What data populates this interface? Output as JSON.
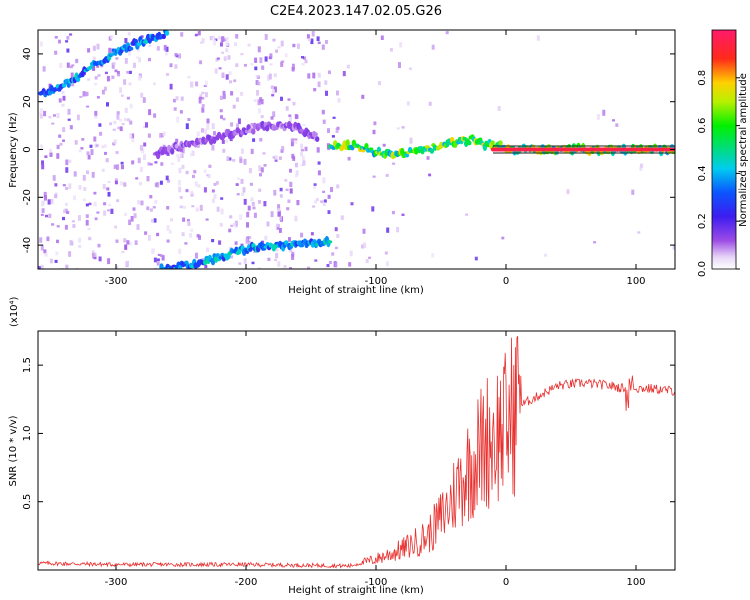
{
  "title": "C2E4.2023.147.02.05.G26",
  "chart_data": [
    {
      "type": "heatmap",
      "title": "C2E4.2023.147.02.05.G26",
      "xlabel": "Height of straight line (km)",
      "ylabel": "Frequency (Hz)",
      "xlim": [
        -360,
        130
      ],
      "ylim": [
        -50,
        50
      ],
      "x_ticks": [
        -300,
        -200,
        -100,
        0,
        100
      ],
      "x_tick_labels": [
        "-300",
        "-200",
        "-100",
        "0",
        "100"
      ],
      "y_ticks": [
        -40,
        -20,
        0,
        20,
        40
      ],
      "y_tick_labels": [
        "-40",
        "-20",
        "0",
        "20",
        "40"
      ],
      "colorbar": {
        "label": "Normalized spectral amplitude",
        "range": [
          0,
          1
        ],
        "ticks": [
          0.0,
          0.2,
          0.4,
          0.6,
          0.8
        ],
        "tick_labels": [
          "0.0",
          "0.2",
          "0.4",
          "0.6",
          "0.8"
        ],
        "colormap": "rainbow (white-purple-blue-cyan-green-yellow-red-magenta)"
      },
      "features": [
        {
          "x": [
            -358,
            -335,
            -315,
            -300,
            -280,
            -260
          ],
          "y": [
            23,
            28,
            36,
            41,
            45,
            49
          ],
          "amplitude": 0.35
        },
        {
          "x": [
            -265,
            -240,
            -215,
            -195,
            -175,
            -150,
            -135
          ],
          "y": [
            -50,
            -48,
            -44,
            -41,
            -40,
            -39,
            -39
          ],
          "amplitude": 0.38
        },
        {
          "x": [
            -270,
            -240,
            -200,
            -180,
            -160,
            -145
          ],
          "y": [
            -2,
            3,
            8,
            10,
            9,
            5
          ],
          "amplitude": 0.12
        },
        {
          "x": [
            -135,
            -120,
            -100,
            -80,
            -60,
            -40,
            -25,
            -15,
            -5,
            0,
            130
          ],
          "y": [
            1,
            2,
            -1,
            -2,
            0,
            3,
            4,
            2,
            2,
            0,
            0
          ],
          "amplitude": 0.6
        },
        {
          "x": [
            -10,
            130
          ],
          "y": [
            0,
            0
          ],
          "amplitude": 0.95
        }
      ]
    },
    {
      "type": "line",
      "xlabel": "Height of straight line (km)",
      "ylabel": "SNR (10 * v/v)",
      "y_multiplier": "(x10⁴)",
      "xlim": [
        -360,
        130
      ],
      "ylim": [
        0,
        1.75
      ],
      "x_ticks": [
        -300,
        -200,
        -100,
        0,
        100
      ],
      "x_tick_labels": [
        "-300",
        "-200",
        "-100",
        "0",
        "100"
      ],
      "y_ticks": [
        0.5,
        1.0,
        1.5
      ],
      "y_tick_labels": [
        "0.5",
        "1.0",
        "1.5"
      ],
      "series": [
        {
          "color": "#e8312f",
          "x": [
            -360,
            -300,
            -200,
            -120,
            -100,
            -80,
            -60,
            -45,
            -35,
            -25,
            -15,
            -8,
            0,
            5,
            10,
            20,
            30,
            40,
            60,
            80,
            90,
            95,
            100,
            110,
            120,
            130
          ],
          "y": [
            0.05,
            0.04,
            0.04,
            0.03,
            0.08,
            0.15,
            0.25,
            0.45,
            0.65,
            0.8,
            0.95,
            1.0,
            1.05,
            1.15,
            1.2,
            1.25,
            1.3,
            1.35,
            1.37,
            1.35,
            1.33,
            1.38,
            1.33,
            1.33,
            1.32,
            1.31
          ]
        }
      ]
    }
  ]
}
